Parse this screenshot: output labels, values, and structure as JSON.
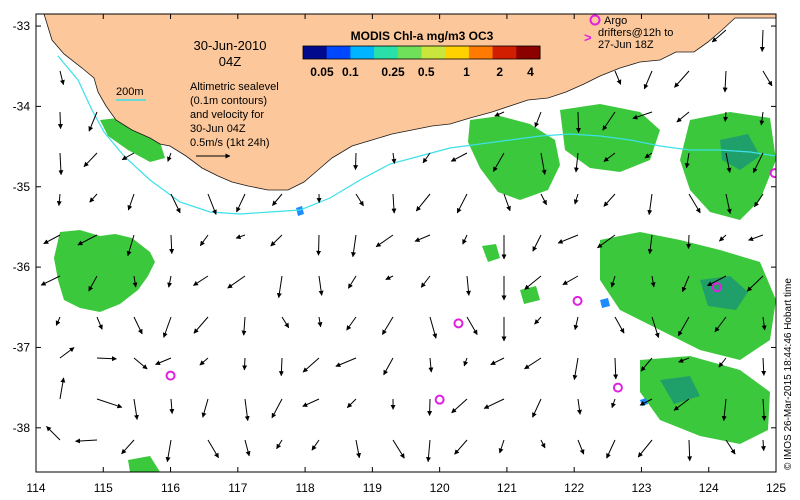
{
  "map": {
    "date_line1": "30-Jun-2010",
    "date_line2": "04Z",
    "colorbar": {
      "title": "MODIS Chl-a mg/m3 OC3",
      "tick_labels": [
        "0.05",
        "0.1",
        "0.25",
        "0.5",
        "1",
        "2",
        "4"
      ],
      "colors": [
        "#000a8c",
        "#0048ff",
        "#00b4ff",
        "#28e0a8",
        "#6ee05a",
        "#c8e63c",
        "#ffd200",
        "#ff7a00",
        "#d21e00",
        "#8c0000"
      ]
    },
    "scale_label": "200m",
    "altimetry_text": [
      "Altimetric sealevel",
      "(0.1m contours)",
      "and velocity for",
      "30-Jun 04Z",
      "0.5m/s (1kt 24h)"
    ],
    "argo_text": [
      "Argo",
      "drifters@12h to",
      "27-Jun 18Z"
    ],
    "credit": "© IMOS 26-Mar-2015 18:44:46 Hobart time",
    "x_tick_labels": [
      "114",
      "115",
      "116",
      "117",
      "118",
      "119",
      "120",
      "121",
      "122",
      "123",
      "124",
      "125"
    ],
    "y_tick_labels": [
      "-33",
      "-34",
      "-35",
      "-36",
      "-37",
      "-38"
    ],
    "x_range": [
      114,
      125
    ],
    "y_range": [
      -38.55,
      -32.85
    ],
    "colors": {
      "land": "#fcc89b",
      "coast": "#1a1a1a",
      "isobath": "#3ce0e8",
      "argo": "#e020e0",
      "chl_green": "#3cc83c",
      "chl_dark": "#1fa06a"
    },
    "argo_floats": [
      {
        "lon": 116.0,
        "lat": -37.35
      },
      {
        "lon": 120.28,
        "lat": -36.7
      },
      {
        "lon": 120.0,
        "lat": -37.65
      },
      {
        "lon": 122.05,
        "lat": -36.42
      },
      {
        "lon": 122.65,
        "lat": -37.5
      },
      {
        "lon": 124.12,
        "lat": -36.25
      },
      {
        "lon": 124.98,
        "lat": -34.83
      }
    ]
  }
}
